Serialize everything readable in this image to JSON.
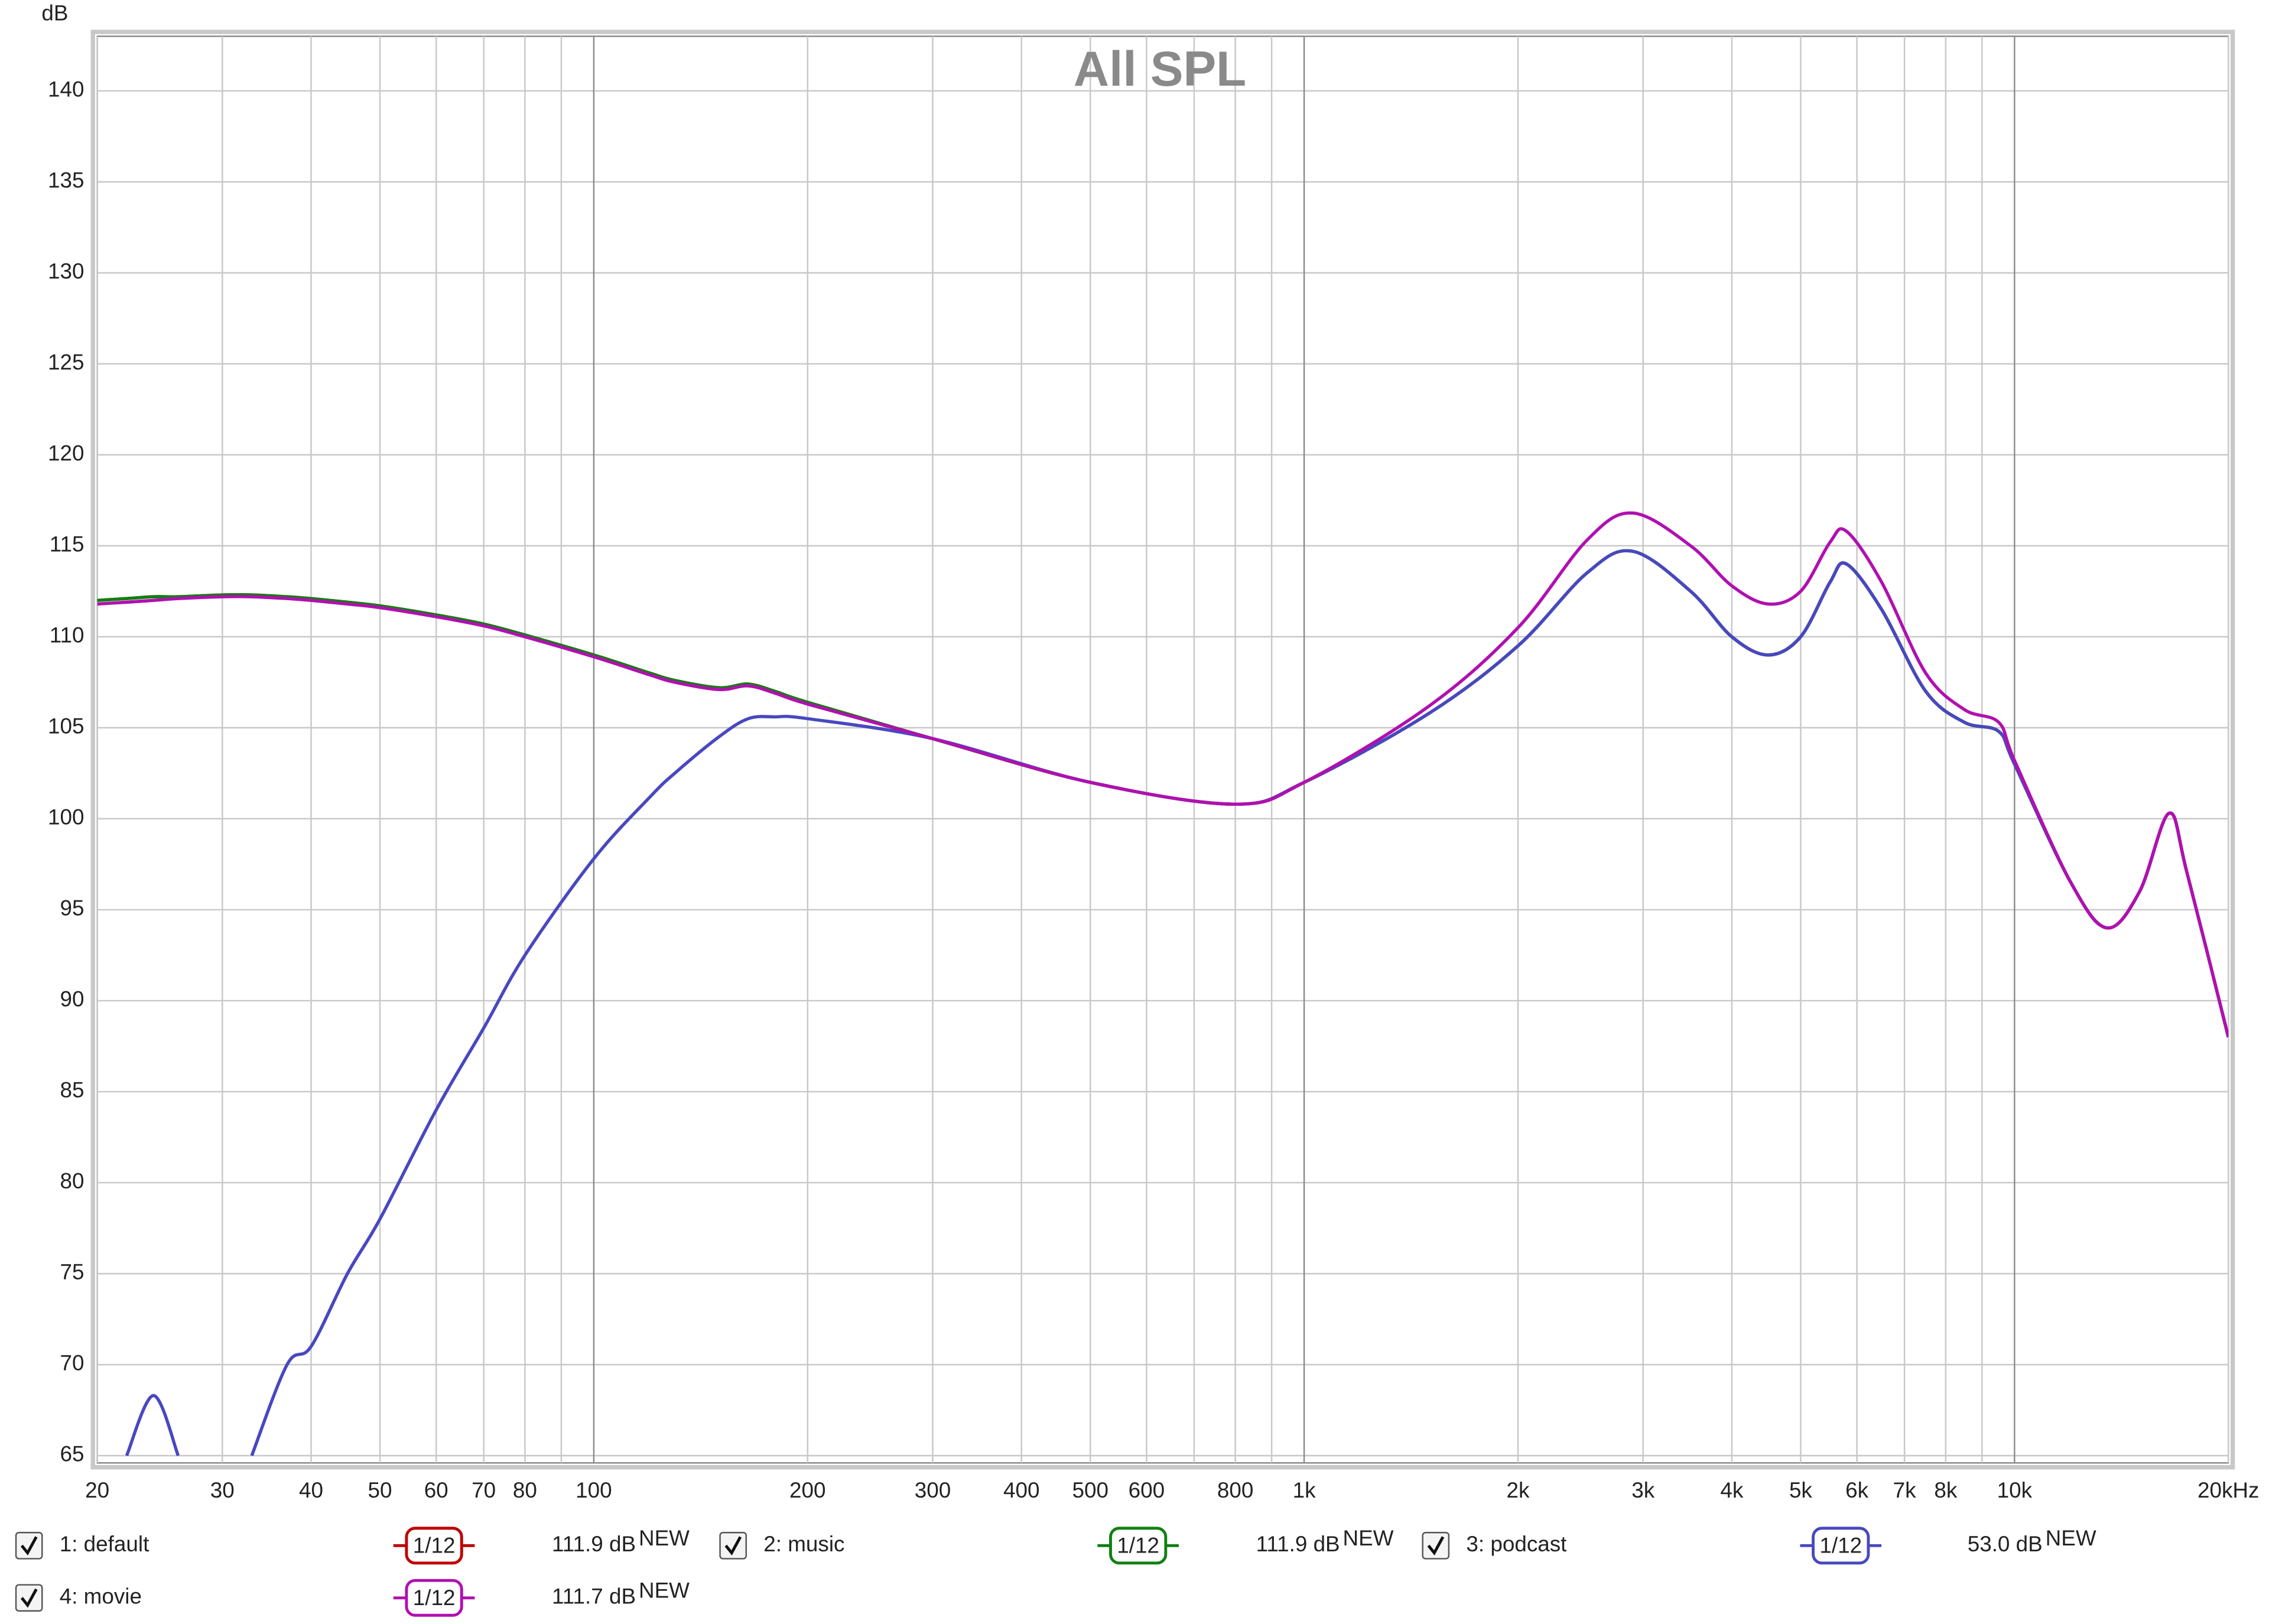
{
  "chart_data": {
    "type": "line",
    "title": "All SPL",
    "y_unit": "dB",
    "log_x": true,
    "grid": true,
    "xlim": [
      20,
      20000
    ],
    "ylim": [
      64.6,
      143
    ],
    "xticks": [
      20,
      30,
      40,
      50,
      60,
      70,
      80,
      100,
      200,
      300,
      400,
      500,
      600,
      800,
      {
        "value": 1000,
        "label": "1k"
      },
      {
        "value": 2000,
        "label": "2k"
      },
      {
        "value": 3000,
        "label": "3k"
      },
      {
        "value": 4000,
        "label": "4k"
      },
      {
        "value": 5000,
        "label": "5k"
      },
      {
        "value": 6000,
        "label": "6k"
      },
      {
        "value": 7000,
        "label": "7k"
      },
      {
        "value": 8000,
        "label": "8k"
      },
      {
        "value": 10000,
        "label": "10k"
      },
      {
        "value": 20000,
        "label": "20kHz"
      }
    ],
    "x_minor_grid": [
      90,
      700,
      900,
      9000
    ],
    "yticks": [
      65,
      70,
      75,
      80,
      85,
      90,
      95,
      100,
      105,
      110,
      115,
      120,
      125,
      130,
      135,
      140
    ],
    "x": [
      20,
      22,
      24,
      26,
      30,
      33,
      37,
      40,
      45,
      50,
      60,
      70,
      80,
      100,
      120,
      130,
      150,
      165,
      180,
      200,
      300,
      500,
      800,
      1000,
      1500,
      2000,
      2500,
      2900,
      3500,
      4000,
      4500,
      5000,
      5500,
      5800,
      6500,
      7500,
      8500,
      9500,
      10000,
      12000,
      13500,
      15000,
      16500,
      17500,
      20000
    ],
    "series": [
      {
        "name": "1: default",
        "color": "#c00000",
        "smoothing": "1/12",
        "level": {
          "value": 111.9,
          "label": "111.9 dB"
        },
        "badge": "NEW",
        "values": [
          112,
          112.1,
          112.2,
          112.2,
          112.3,
          112.3,
          112.2,
          112.1,
          111.9,
          111.7,
          111.2,
          110.7,
          110.1,
          109,
          108,
          107.6,
          107.2,
          107.4,
          107,
          106.4,
          104.4,
          102,
          100.8,
          102,
          105.8,
          109.5,
          113.5,
          114.7,
          112.5,
          110,
          109,
          110,
          113,
          114,
          111.5,
          107,
          105.3,
          104.8,
          103,
          96.5,
          94,
          96,
          100.3,
          97,
          88
        ]
      },
      {
        "name": "2: music",
        "color": "#108010",
        "smoothing": "1/12",
        "level": {
          "value": 111.9,
          "label": "111.9 dB"
        },
        "badge": "NEW",
        "values": [
          112,
          112.1,
          112.2,
          112.2,
          112.3,
          112.3,
          112.2,
          112.1,
          111.9,
          111.7,
          111.2,
          110.7,
          110.1,
          109,
          108,
          107.6,
          107.2,
          107.4,
          107,
          106.4,
          104.4,
          102,
          100.8,
          102,
          105.8,
          109.5,
          113.5,
          114.7,
          112.5,
          110,
          109,
          110,
          113,
          114,
          111.5,
          107,
          105.3,
          104.8,
          103,
          96.5,
          94,
          96,
          100.3,
          97,
          88
        ]
      },
      {
        "name": "3: podcast",
        "color": "#4848c0",
        "smoothing": "1/12",
        "level": {
          "value": 53.0,
          "label": "53.0 dB"
        },
        "badge": "NEW",
        "values": [
          null,
          65,
          68.3,
          65,
          null,
          65,
          70,
          71,
          75,
          78,
          84,
          88.5,
          92.5,
          97.8,
          101.2,
          102.5,
          104.5,
          105.5,
          105.6,
          105.5,
          104.4,
          102,
          100.8,
          102,
          105.8,
          109.5,
          113.5,
          114.7,
          112.5,
          110,
          109,
          110,
          113,
          114,
          111.5,
          107,
          105.3,
          104.8,
          103,
          96.5,
          94,
          96,
          100.3,
          97,
          88
        ]
      },
      {
        "name": "4: movie",
        "color": "#b010b0",
        "smoothing": "1/12",
        "level": {
          "value": 111.7,
          "label": "111.7 dB"
        },
        "badge": "NEW",
        "values": [
          111.8,
          111.9,
          112,
          112.1,
          112.2,
          112.2,
          112.1,
          112,
          111.8,
          111.6,
          111.1,
          110.6,
          110,
          108.9,
          107.9,
          107.5,
          107.1,
          107.3,
          106.9,
          106.3,
          104.4,
          102,
          100.8,
          102,
          106.2,
          110.5,
          115.3,
          116.8,
          115,
          112.8,
          111.8,
          112.5,
          115.2,
          115.8,
          113,
          108,
          106,
          105.3,
          103.2,
          96.5,
          94,
          96,
          100.3,
          97,
          88
        ]
      }
    ]
  }
}
